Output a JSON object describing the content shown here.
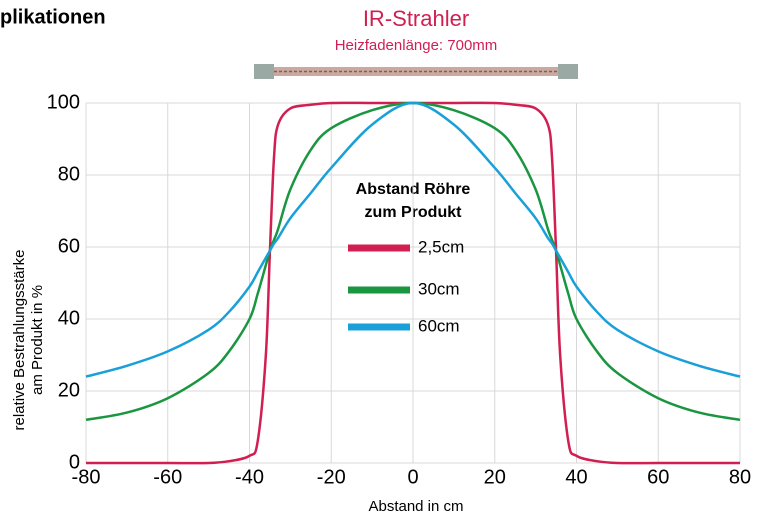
{
  "header": {
    "cut_title": "plikationen",
    "title": "IR-Strahler",
    "subtitle": "Heizfadenlänge: 700mm"
  },
  "chart_data": {
    "type": "line",
    "xlabel": "Abstand in cm",
    "ylabel": [
      "relative Bestrahlungsstärke",
      "am Produkt in %"
    ],
    "legend_title": [
      "Abstand Röhre",
      "zum Produkt"
    ],
    "x": [
      -80,
      -70,
      -60,
      -50,
      -45,
      -40,
      -38,
      -36,
      -35,
      -34,
      -33,
      -30,
      -25,
      -20,
      -10,
      0,
      10,
      20,
      25,
      30,
      33,
      34,
      35,
      36,
      38,
      40,
      45,
      50,
      60,
      70,
      80
    ],
    "series": [
      {
        "name": "2,5cm",
        "color": "#d11f52",
        "values": [
          0,
          0,
          0,
          0,
          0.5,
          2,
          6,
          30,
          59,
          85,
          94,
          98.5,
          99.5,
          100,
          100,
          100,
          100,
          100,
          99.5,
          98.5,
          94,
          85,
          59,
          30,
          6,
          2,
          0.5,
          0,
          0,
          0,
          0
        ]
      },
      {
        "name": "30cm",
        "color": "#1a9641",
        "values": [
          12,
          14,
          18,
          25,
          31,
          40,
          47,
          55,
          59,
          62,
          65,
          76,
          87,
          93,
          98,
          100,
          98,
          93,
          87,
          76,
          65,
          62,
          59,
          55,
          47,
          40,
          31,
          25,
          18,
          14,
          12
        ]
      },
      {
        "name": "60cm",
        "color": "#1aa0d8",
        "values": [
          24,
          27,
          31,
          37,
          42,
          49,
          53,
          57,
          59,
          61,
          62.5,
          68,
          75,
          82,
          94,
          100,
          94,
          82,
          75,
          68,
          62.5,
          61,
          59,
          57,
          53,
          49,
          42,
          37,
          31,
          27,
          24
        ]
      }
    ],
    "xlim": [
      -80,
      80
    ],
    "ylim": [
      0,
      100
    ],
    "xticks": [
      -80,
      -60,
      -40,
      -20,
      0,
      20,
      40,
      60,
      80
    ],
    "yticks": [
      0,
      20,
      40,
      60,
      80,
      100
    ],
    "grid": true
  }
}
